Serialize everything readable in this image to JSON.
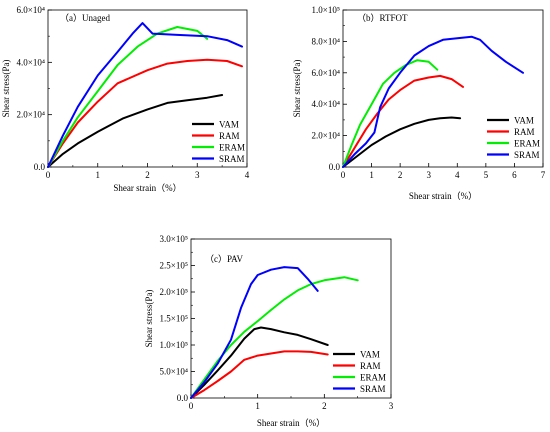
{
  "chart_data": [
    {
      "type": "line",
      "title": "（a）Unaged",
      "xlabel": "Shear strain（%）",
      "ylabel": "Shear stress(Pa)",
      "xlim": [
        0,
        4
      ],
      "ylim": [
        0,
        60000
      ],
      "x_ticks": [
        "0",
        "1",
        "2",
        "3",
        "4"
      ],
      "y_ticks": [
        "0.0",
        "2.0×10⁴",
        "4.0×10⁴",
        "6.0×10⁴"
      ],
      "legend_position": "bottom-right",
      "series": [
        {
          "name": "VAM",
          "color": "#000000",
          "x": [
            0,
            0.3,
            0.6,
            1.0,
            1.5,
            2.0,
            2.4,
            2.8,
            3.2,
            3.5
          ],
          "y": [
            0,
            5000,
            9000,
            13500,
            18500,
            22000,
            24500,
            25500,
            26500,
            27500
          ]
        },
        {
          "name": "RAM",
          "color": "#ff0000",
          "x": [
            0,
            0.3,
            0.6,
            1.0,
            1.4,
            2.0,
            2.4,
            2.8,
            3.2,
            3.6,
            3.9
          ],
          "y": [
            0,
            9000,
            17000,
            25000,
            32000,
            37000,
            39500,
            40500,
            41000,
            40500,
            38500
          ]
        },
        {
          "name": "ERAM",
          "color": "#00ee00",
          "x": [
            0,
            0.3,
            0.6,
            1.0,
            1.4,
            1.8,
            2.2,
            2.6,
            3.0,
            3.2
          ],
          "y": [
            0,
            10000,
            19000,
            29000,
            39000,
            46000,
            51000,
            53500,
            52000,
            49000
          ]
        },
        {
          "name": "SRAM",
          "color": "#0000ff",
          "x": [
            0,
            0.3,
            0.6,
            1.0,
            1.4,
            1.7,
            1.9,
            2.1,
            2.6,
            3.2,
            3.6,
            3.9
          ],
          "y": [
            0,
            12000,
            23000,
            35000,
            44000,
            51000,
            55000,
            51000,
            50500,
            50000,
            48500,
            46000
          ]
        }
      ]
    },
    {
      "type": "line",
      "title": "（b）RTFOT",
      "xlabel": "Shear strain（%）",
      "ylabel": "Shear stress(Pa)",
      "xlim": [
        0,
        7
      ],
      "ylim": [
        0,
        100000
      ],
      "x_ticks": [
        "0",
        "1",
        "2",
        "3",
        "4",
        "5",
        "6",
        "7"
      ],
      "y_ticks": [
        "0.0",
        "2.0×10⁴",
        "4.0×10⁴",
        "6.0×10⁴",
        "8.0×10⁴",
        "1.0×10⁵"
      ],
      "legend_position": "bottom-right",
      "series": [
        {
          "name": "VAM",
          "color": "#000000",
          "x": [
            0,
            0.5,
            1.0,
            1.5,
            2.0,
            2.5,
            3.0,
            3.4,
            3.8,
            4.1
          ],
          "y": [
            0,
            7000,
            14000,
            19500,
            24000,
            27500,
            30000,
            31000,
            31500,
            31000
          ]
        },
        {
          "name": "RAM",
          "color": "#ff0000",
          "x": [
            0,
            0.4,
            0.8,
            1.2,
            1.6,
            2.0,
            2.5,
            3.0,
            3.4,
            3.8,
            4.2
          ],
          "y": [
            0,
            12000,
            24000,
            34000,
            43000,
            49000,
            55000,
            57000,
            58000,
            56000,
            51000
          ]
        },
        {
          "name": "ERAM",
          "color": "#00ee00",
          "x": [
            0,
            0.3,
            0.6,
            1.0,
            1.4,
            1.8,
            2.2,
            2.6,
            3.0,
            3.3
          ],
          "y": [
            0,
            14000,
            27000,
            40000,
            53000,
            60000,
            65000,
            68000,
            67000,
            62000
          ]
        },
        {
          "name": "SRAM",
          "color": "#0000ff",
          "x": [
            0,
            0.4,
            0.8,
            1.1,
            1.3,
            1.6,
            2.0,
            2.5,
            3.0,
            3.5,
            4.0,
            4.5,
            4.8,
            5.2,
            5.7,
            6.3
          ],
          "y": [
            0,
            8000,
            15000,
            22000,
            38000,
            50000,
            60000,
            71000,
            77000,
            81000,
            82000,
            83000,
            81000,
            74000,
            67000,
            60000
          ]
        }
      ]
    },
    {
      "type": "line",
      "title": "（c）PAV",
      "xlabel": "Shear strain（%）",
      "ylabel": "Shear stress(Pa)",
      "xlim": [
        0,
        3
      ],
      "ylim": [
        0,
        300000
      ],
      "x_ticks": [
        "0",
        "1",
        "2",
        "3"
      ],
      "y_ticks": [
        "0.0",
        "5.0×10⁴",
        "1.0×10⁵",
        "1.5×10⁵",
        "2.0×10⁵",
        "2.5×10⁵",
        "3.0×10⁵"
      ],
      "legend_position": "bottom-right",
      "series": [
        {
          "name": "VAM",
          "color": "#000000",
          "x": [
            0,
            0.2,
            0.4,
            0.6,
            0.8,
            0.95,
            1.05,
            1.2,
            1.4,
            1.6,
            1.8,
            2.05
          ],
          "y": [
            0,
            25000,
            52000,
            80000,
            112000,
            130000,
            133000,
            130000,
            124000,
            119000,
            111000,
            100000
          ]
        },
        {
          "name": "RAM",
          "color": "#ff0000",
          "x": [
            0,
            0.2,
            0.4,
            0.6,
            0.8,
            1.0,
            1.2,
            1.4,
            1.6,
            1.8,
            2.05
          ],
          "y": [
            0,
            15000,
            32000,
            50000,
            72000,
            80000,
            84000,
            88000,
            88000,
            87000,
            82000
          ]
        },
        {
          "name": "ERAM",
          "color": "#00ee00",
          "x": [
            0,
            0.2,
            0.4,
            0.6,
            0.8,
            1.0,
            1.2,
            1.4,
            1.6,
            1.8,
            2.0,
            2.3,
            2.5
          ],
          "y": [
            0,
            35000,
            70000,
            100000,
            125000,
            145000,
            166000,
            186000,
            203000,
            215000,
            222000,
            228000,
            222000
          ]
        },
        {
          "name": "SRAM",
          "color": "#0000ff",
          "x": [
            0,
            0.2,
            0.4,
            0.6,
            0.75,
            0.9,
            1.0,
            1.2,
            1.4,
            1.6,
            1.75,
            1.9
          ],
          "y": [
            0,
            30000,
            65000,
            110000,
            170000,
            215000,
            232000,
            242000,
            247000,
            245000,
            225000,
            202000
          ]
        }
      ]
    }
  ]
}
